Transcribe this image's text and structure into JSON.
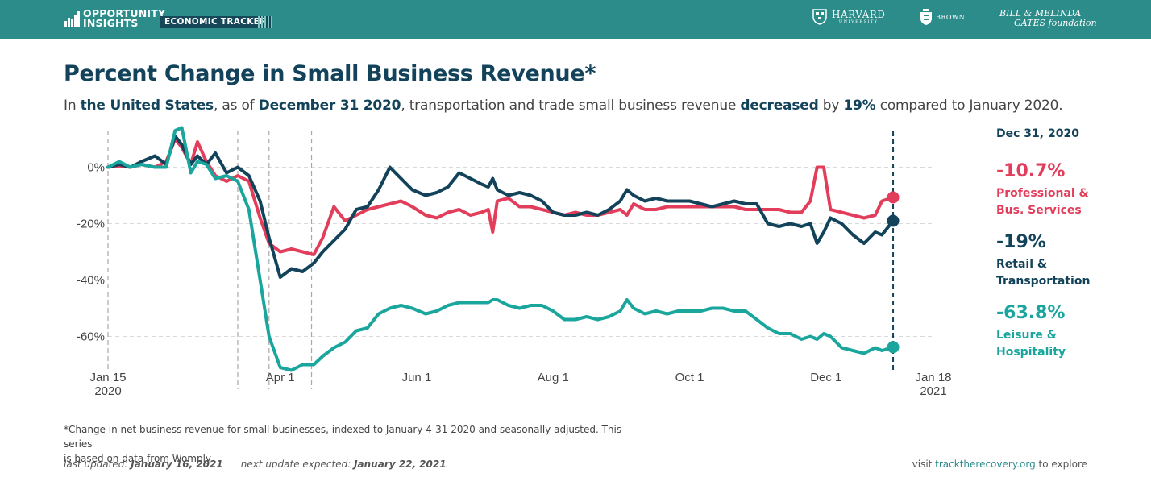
{
  "header": {
    "brand_line1": "OPPORTUNITY",
    "brand_line2": "INSIGHTS",
    "tracker_label": "ECONOMIC TRACKER",
    "partners": {
      "harvard": "HARVARD",
      "harvard_sub": "UNIVERSITY",
      "brown": "BROWN",
      "gates_line1": "BILL & MELINDA",
      "gates_line2": "GATES foundation"
    },
    "colors": {
      "bar": "#2b8c8a",
      "tag": "#16485a"
    }
  },
  "title": "Percent Change in Small Business Revenue*",
  "subtitle": {
    "p1": "In ",
    "place": "the United States",
    "p2": ", as of ",
    "date": "December 31 2020",
    "p3": ", transportation and trade small business revenue ",
    "direction": "decreased",
    "p4": " by ",
    "amount": "19%",
    "p5": " compared to January 2020."
  },
  "side": {
    "date": "Dec 31, 2020",
    "entries": [
      {
        "value": "-10.7%",
        "label1": "Professional &",
        "label2": "Bus. Services",
        "color": "#e23e5b"
      },
      {
        "value": "-19%",
        "label1": "Retail &",
        "label2": "Transportation",
        "color": "#12435a"
      },
      {
        "value": "-63.8%",
        "label1": "Leisure &",
        "label2": "Hospitality",
        "color": "#1aa69d"
      }
    ]
  },
  "chart_data": {
    "type": "line",
    "xlim": [
      "2020-01-15",
      "2021-01-18"
    ],
    "ylim": [
      -75,
      15
    ],
    "grid": true,
    "x_ticks": [
      {
        "date": "2020-01-15",
        "label": "Jan 15",
        "label2": "2020"
      },
      {
        "date": "2020-04-01",
        "label": "Apr 1",
        "label2": ""
      },
      {
        "date": "2020-06-01",
        "label": "Jun 1",
        "label2": ""
      },
      {
        "date": "2020-08-01",
        "label": "Aug 1",
        "label2": ""
      },
      {
        "date": "2020-10-01",
        "label": "Oct 1",
        "label2": ""
      },
      {
        "date": "2020-12-01",
        "label": "Dec 1",
        "label2": ""
      },
      {
        "date": "2021-01-18",
        "label": "Jan 18",
        "label2": "2021"
      }
    ],
    "y_ticks": [
      {
        "value": 0,
        "label": "0%"
      },
      {
        "value": -20,
        "label": "-20%"
      },
      {
        "value": -40,
        "label": "-40%"
      },
      {
        "value": -60,
        "label": "-60%"
      }
    ],
    "event_dates": [
      "2020-03-13",
      "2020-03-27",
      "2020-04-15"
    ],
    "current_date": "2020-12-31",
    "series": [
      {
        "name": "Professional & Bus. Services",
        "color": "#e23e5b",
        "points": [
          [
            "2020-01-15",
            0
          ],
          [
            "2020-01-20",
            0.5
          ],
          [
            "2020-01-25",
            0
          ],
          [
            "2020-01-30",
            1
          ],
          [
            "2020-02-05",
            0
          ],
          [
            "2020-02-10",
            2
          ],
          [
            "2020-02-14",
            10
          ],
          [
            "2020-02-17",
            7
          ],
          [
            "2020-02-21",
            1
          ],
          [
            "2020-02-24",
            9
          ],
          [
            "2020-02-28",
            2
          ],
          [
            "2020-03-03",
            -3
          ],
          [
            "2020-03-08",
            -5
          ],
          [
            "2020-03-13",
            -3
          ],
          [
            "2020-03-18",
            -5
          ],
          [
            "2020-03-23",
            -18
          ],
          [
            "2020-03-27",
            -27
          ],
          [
            "2020-04-01",
            -30
          ],
          [
            "2020-04-06",
            -29
          ],
          [
            "2020-04-11",
            -30
          ],
          [
            "2020-04-16",
            -31
          ],
          [
            "2020-04-20",
            -25
          ],
          [
            "2020-04-25",
            -14
          ],
          [
            "2020-04-30",
            -19
          ],
          [
            "2020-05-05",
            -17
          ],
          [
            "2020-05-10",
            -15
          ],
          [
            "2020-05-15",
            -14
          ],
          [
            "2020-05-20",
            -13
          ],
          [
            "2020-05-25",
            -12
          ],
          [
            "2020-05-30",
            -14
          ],
          [
            "2020-06-05",
            -17
          ],
          [
            "2020-06-10",
            -18
          ],
          [
            "2020-06-15",
            -16
          ],
          [
            "2020-06-20",
            -15
          ],
          [
            "2020-06-25",
            -17
          ],
          [
            "2020-06-30",
            -16
          ],
          [
            "2020-07-03",
            -15
          ],
          [
            "2020-07-05",
            -23
          ],
          [
            "2020-07-07",
            -12
          ],
          [
            "2020-07-12",
            -11
          ],
          [
            "2020-07-17",
            -14
          ],
          [
            "2020-07-22",
            -14
          ],
          [
            "2020-07-27",
            -15
          ],
          [
            "2020-08-01",
            -16
          ],
          [
            "2020-08-06",
            -17
          ],
          [
            "2020-08-11",
            -16
          ],
          [
            "2020-08-16",
            -17
          ],
          [
            "2020-08-21",
            -17
          ],
          [
            "2020-08-26",
            -16
          ],
          [
            "2020-08-31",
            -15
          ],
          [
            "2020-09-03",
            -17
          ],
          [
            "2020-09-06",
            -13
          ],
          [
            "2020-09-11",
            -15
          ],
          [
            "2020-09-16",
            -15
          ],
          [
            "2020-09-21",
            -14
          ],
          [
            "2020-09-26",
            -14
          ],
          [
            "2020-10-01",
            -14
          ],
          [
            "2020-10-06",
            -14
          ],
          [
            "2020-10-11",
            -14
          ],
          [
            "2020-10-16",
            -14
          ],
          [
            "2020-10-21",
            -14
          ],
          [
            "2020-10-26",
            -15
          ],
          [
            "2020-10-31",
            -15
          ],
          [
            "2020-11-05",
            -15
          ],
          [
            "2020-11-10",
            -15
          ],
          [
            "2020-11-15",
            -16
          ],
          [
            "2020-11-20",
            -16
          ],
          [
            "2020-11-24",
            -12
          ],
          [
            "2020-11-27",
            0
          ],
          [
            "2020-11-30",
            0
          ],
          [
            "2020-12-03",
            -15
          ],
          [
            "2020-12-08",
            -16
          ],
          [
            "2020-12-13",
            -17
          ],
          [
            "2020-12-18",
            -18
          ],
          [
            "2020-12-23",
            -17
          ],
          [
            "2020-12-26",
            -12
          ],
          [
            "2020-12-31",
            -10.7
          ]
        ]
      },
      {
        "name": "Retail & Transportation",
        "color": "#12435a",
        "points": [
          [
            "2020-01-15",
            0
          ],
          [
            "2020-01-20",
            1
          ],
          [
            "2020-01-25",
            0
          ],
          [
            "2020-01-30",
            2
          ],
          [
            "2020-02-05",
            4
          ],
          [
            "2020-02-10",
            1
          ],
          [
            "2020-02-14",
            11
          ],
          [
            "2020-02-17",
            8
          ],
          [
            "2020-02-21",
            1
          ],
          [
            "2020-02-24",
            4
          ],
          [
            "2020-02-28",
            1
          ],
          [
            "2020-03-03",
            5
          ],
          [
            "2020-03-08",
            -2
          ],
          [
            "2020-03-13",
            0
          ],
          [
            "2020-03-18",
            -3
          ],
          [
            "2020-03-23",
            -12
          ],
          [
            "2020-03-27",
            -25
          ],
          [
            "2020-04-01",
            -39
          ],
          [
            "2020-04-06",
            -36
          ],
          [
            "2020-04-11",
            -37
          ],
          [
            "2020-04-16",
            -34
          ],
          [
            "2020-04-20",
            -30
          ],
          [
            "2020-04-25",
            -26
          ],
          [
            "2020-04-30",
            -22
          ],
          [
            "2020-05-05",
            -15
          ],
          [
            "2020-05-10",
            -14
          ],
          [
            "2020-05-15",
            -8
          ],
          [
            "2020-05-20",
            0
          ],
          [
            "2020-05-25",
            -4
          ],
          [
            "2020-05-30",
            -8
          ],
          [
            "2020-06-05",
            -10
          ],
          [
            "2020-06-10",
            -9
          ],
          [
            "2020-06-15",
            -7
          ],
          [
            "2020-06-20",
            -2
          ],
          [
            "2020-06-25",
            -4
          ],
          [
            "2020-06-30",
            -6
          ],
          [
            "2020-07-03",
            -7
          ],
          [
            "2020-07-05",
            -4
          ],
          [
            "2020-07-07",
            -8
          ],
          [
            "2020-07-12",
            -10
          ],
          [
            "2020-07-17",
            -9
          ],
          [
            "2020-07-22",
            -10
          ],
          [
            "2020-07-27",
            -12
          ],
          [
            "2020-08-01",
            -16
          ],
          [
            "2020-08-06",
            -17
          ],
          [
            "2020-08-11",
            -17
          ],
          [
            "2020-08-16",
            -16
          ],
          [
            "2020-08-21",
            -17
          ],
          [
            "2020-08-26",
            -15
          ],
          [
            "2020-08-31",
            -12
          ],
          [
            "2020-09-03",
            -8
          ],
          [
            "2020-09-06",
            -10
          ],
          [
            "2020-09-11",
            -12
          ],
          [
            "2020-09-16",
            -11
          ],
          [
            "2020-09-21",
            -12
          ],
          [
            "2020-09-26",
            -12
          ],
          [
            "2020-10-01",
            -12
          ],
          [
            "2020-10-06",
            -13
          ],
          [
            "2020-10-11",
            -14
          ],
          [
            "2020-10-16",
            -13
          ],
          [
            "2020-10-21",
            -12
          ],
          [
            "2020-10-26",
            -13
          ],
          [
            "2020-10-31",
            -13
          ],
          [
            "2020-11-05",
            -20
          ],
          [
            "2020-11-10",
            -21
          ],
          [
            "2020-11-15",
            -20
          ],
          [
            "2020-11-20",
            -21
          ],
          [
            "2020-11-24",
            -20
          ],
          [
            "2020-11-27",
            -27
          ],
          [
            "2020-11-30",
            -23
          ],
          [
            "2020-12-03",
            -18
          ],
          [
            "2020-12-08",
            -20
          ],
          [
            "2020-12-13",
            -24
          ],
          [
            "2020-12-18",
            -27
          ],
          [
            "2020-12-23",
            -23
          ],
          [
            "2020-12-26",
            -24
          ],
          [
            "2020-12-31",
            -19
          ]
        ]
      },
      {
        "name": "Leisure & Hospitality",
        "color": "#1aa69d",
        "points": [
          [
            "2020-01-15",
            0
          ],
          [
            "2020-01-20",
            2
          ],
          [
            "2020-01-25",
            0
          ],
          [
            "2020-01-30",
            1
          ],
          [
            "2020-02-05",
            0
          ],
          [
            "2020-02-10",
            0
          ],
          [
            "2020-02-14",
            13
          ],
          [
            "2020-02-17",
            14
          ],
          [
            "2020-02-21",
            -2
          ],
          [
            "2020-02-24",
            2
          ],
          [
            "2020-02-28",
            1
          ],
          [
            "2020-03-03",
            -4
          ],
          [
            "2020-03-08",
            -3
          ],
          [
            "2020-03-13",
            -5
          ],
          [
            "2020-03-18",
            -15
          ],
          [
            "2020-03-23",
            -40
          ],
          [
            "2020-03-27",
            -60
          ],
          [
            "2020-04-01",
            -71
          ],
          [
            "2020-04-06",
            -72
          ],
          [
            "2020-04-11",
            -70
          ],
          [
            "2020-04-16",
            -70
          ],
          [
            "2020-04-20",
            -67
          ],
          [
            "2020-04-25",
            -64
          ],
          [
            "2020-04-30",
            -62
          ],
          [
            "2020-05-05",
            -58
          ],
          [
            "2020-05-10",
            -57
          ],
          [
            "2020-05-15",
            -52
          ],
          [
            "2020-05-20",
            -50
          ],
          [
            "2020-05-25",
            -49
          ],
          [
            "2020-05-30",
            -50
          ],
          [
            "2020-06-05",
            -52
          ],
          [
            "2020-06-10",
            -51
          ],
          [
            "2020-06-15",
            -49
          ],
          [
            "2020-06-20",
            -48
          ],
          [
            "2020-06-25",
            -48
          ],
          [
            "2020-06-30",
            -48
          ],
          [
            "2020-07-03",
            -48
          ],
          [
            "2020-07-05",
            -47
          ],
          [
            "2020-07-07",
            -47
          ],
          [
            "2020-07-12",
            -49
          ],
          [
            "2020-07-17",
            -50
          ],
          [
            "2020-07-22",
            -49
          ],
          [
            "2020-07-27",
            -49
          ],
          [
            "2020-08-01",
            -51
          ],
          [
            "2020-08-06",
            -54
          ],
          [
            "2020-08-11",
            -54
          ],
          [
            "2020-08-16",
            -53
          ],
          [
            "2020-08-21",
            -54
          ],
          [
            "2020-08-26",
            -53
          ],
          [
            "2020-08-31",
            -51
          ],
          [
            "2020-09-03",
            -47
          ],
          [
            "2020-09-06",
            -50
          ],
          [
            "2020-09-11",
            -52
          ],
          [
            "2020-09-16",
            -51
          ],
          [
            "2020-09-21",
            -52
          ],
          [
            "2020-09-26",
            -51
          ],
          [
            "2020-10-01",
            -51
          ],
          [
            "2020-10-06",
            -51
          ],
          [
            "2020-10-11",
            -50
          ],
          [
            "2020-10-16",
            -50
          ],
          [
            "2020-10-21",
            -51
          ],
          [
            "2020-10-26",
            -51
          ],
          [
            "2020-10-31",
            -54
          ],
          [
            "2020-11-05",
            -57
          ],
          [
            "2020-11-10",
            -59
          ],
          [
            "2020-11-15",
            -59
          ],
          [
            "2020-11-20",
            -61
          ],
          [
            "2020-11-24",
            -60
          ],
          [
            "2020-11-27",
            -61
          ],
          [
            "2020-11-30",
            -59
          ],
          [
            "2020-12-03",
            -60
          ],
          [
            "2020-12-08",
            -64
          ],
          [
            "2020-12-13",
            -65
          ],
          [
            "2020-12-18",
            -66
          ],
          [
            "2020-12-23",
            -64
          ],
          [
            "2020-12-26",
            -65
          ],
          [
            "2020-12-31",
            -63.8
          ]
        ]
      }
    ]
  },
  "footnote": {
    "line1": "*Change in net business revenue for small businesses, indexed to January 4-31 2020 and seasonally adjusted. This series",
    "line2": "is based on data from Womply."
  },
  "updates": {
    "last_label": "last updated: ",
    "last_date": "January 16, 2021",
    "next_label": "next update expected: ",
    "next_date": "January 22, 2021"
  },
  "visit": {
    "pre": "visit ",
    "link": "tracktherecovery.org",
    "post": " to explore"
  }
}
